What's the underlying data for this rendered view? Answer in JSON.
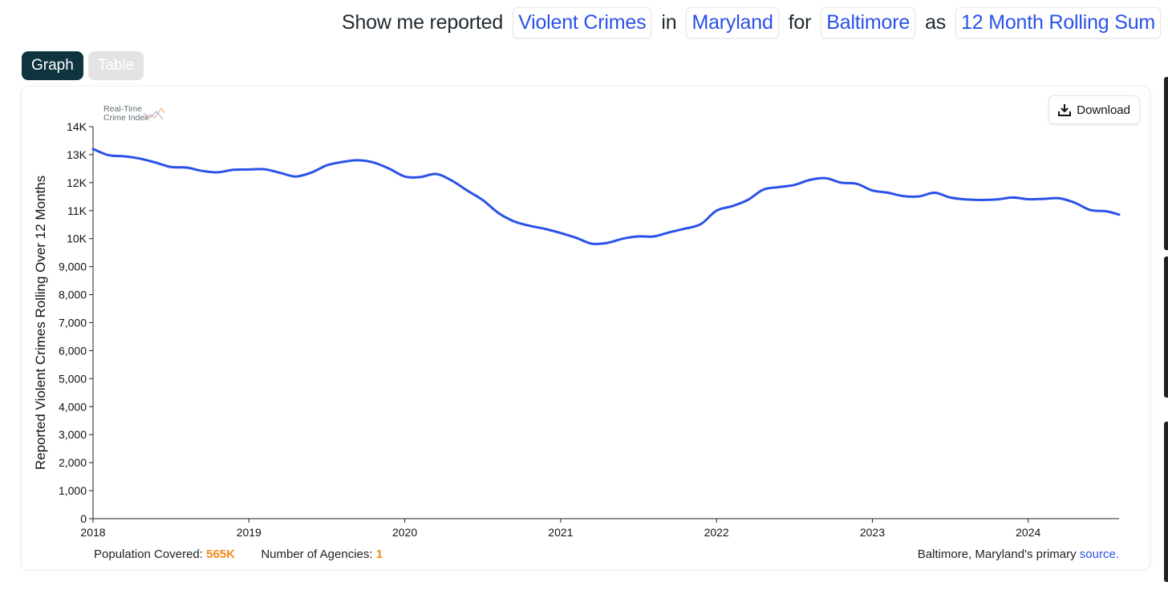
{
  "query": {
    "w1": "Show me reported",
    "metric": "Violent Crimes",
    "w2": "in",
    "state": "Maryland",
    "w3": "for",
    "agency": "Baltimore",
    "w4": "as",
    "measure": "12 Month Rolling Sum"
  },
  "tabs": {
    "graph": "Graph",
    "table": "Table"
  },
  "logo": {
    "line1": "Real-Time",
    "line2": "Crime Index"
  },
  "download_label": "Download",
  "footer": {
    "pop_label": "Population Covered:",
    "pop_value": "565K",
    "agencies_label": "Number of Agencies:",
    "agencies_value": "1",
    "source_text": "Baltimore, Maryland's primary",
    "source_link": "source."
  },
  "colors": {
    "line": "#2a52e8",
    "accent": "#f28a1c",
    "active_tab": "#0e3440"
  },
  "chart_data": {
    "type": "line",
    "ylabel": "Reported Violent Crimes Rolling Over 12 Months",
    "xlabel": "",
    "ylim": [
      0,
      14000
    ],
    "yticks": [
      {
        "v": 0,
        "label": "0"
      },
      {
        "v": 1000,
        "label": "1,000"
      },
      {
        "v": 2000,
        "label": "2,000"
      },
      {
        "v": 3000,
        "label": "3,000"
      },
      {
        "v": 4000,
        "label": "4,000"
      },
      {
        "v": 5000,
        "label": "5,000"
      },
      {
        "v": 6000,
        "label": "6,000"
      },
      {
        "v": 7000,
        "label": "7,000"
      },
      {
        "v": 8000,
        "label": "8,000"
      },
      {
        "v": 9000,
        "label": "9,000"
      },
      {
        "v": 10000,
        "label": "10K"
      },
      {
        "v": 11000,
        "label": "11K"
      },
      {
        "v": 12000,
        "label": "12K"
      },
      {
        "v": 13000,
        "label": "13K"
      },
      {
        "v": 14000,
        "label": "14K"
      }
    ],
    "xlim": [
      2018.0,
      2024.583
    ],
    "xticks": [
      "2018",
      "2019",
      "2020",
      "2021",
      "2022",
      "2023",
      "2024"
    ],
    "grid": false,
    "series": [
      {
        "x": [
          2018.0,
          2018.1,
          2018.2,
          2018.3,
          2018.4,
          2018.5,
          2018.6,
          2018.7,
          2018.8,
          2018.9,
          2019.0,
          2019.1,
          2019.2,
          2019.3,
          2019.4,
          2019.5,
          2019.6,
          2019.7,
          2019.8,
          2019.9,
          2020.0,
          2020.1,
          2020.2,
          2020.3,
          2020.4,
          2020.5,
          2020.6,
          2020.7,
          2020.8,
          2020.9,
          2021.0,
          2021.1,
          2021.2,
          2021.3,
          2021.4,
          2021.5,
          2021.6,
          2021.7,
          2021.8,
          2021.9,
          2022.0,
          2022.1,
          2022.2,
          2022.3,
          2022.4,
          2022.5,
          2022.6,
          2022.7,
          2022.8,
          2022.9,
          2023.0,
          2023.1,
          2023.2,
          2023.3,
          2023.4,
          2023.5,
          2023.6,
          2023.7,
          2023.8,
          2023.9,
          2024.0,
          2024.1,
          2024.2,
          2024.3,
          2024.4,
          2024.5,
          2024.583
        ],
        "y": [
          13200,
          12980,
          12940,
          12860,
          12720,
          12560,
          12540,
          12420,
          12370,
          12460,
          12470,
          12480,
          12350,
          12220,
          12360,
          12620,
          12740,
          12800,
          12720,
          12500,
          12220,
          12200,
          12310,
          12080,
          11720,
          11380,
          10920,
          10620,
          10460,
          10350,
          10200,
          10030,
          9820,
          9850,
          10000,
          10080,
          10080,
          10230,
          10360,
          10520,
          11000,
          11160,
          11380,
          11750,
          11840,
          11920,
          12100,
          12160,
          12000,
          11960,
          11720,
          11640,
          11520,
          11510,
          11640,
          11470,
          11400,
          11380,
          11400,
          11470,
          11410,
          11420,
          11440,
          11280,
          11020,
          10980,
          10860
        ]
      }
    ]
  }
}
